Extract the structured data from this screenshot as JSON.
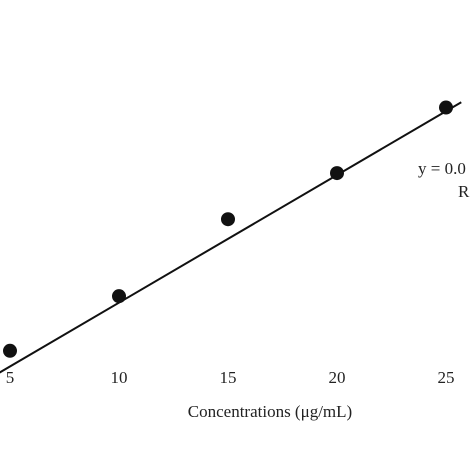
{
  "chart_data": {
    "type": "scatter",
    "xlabel": "Concentrations (μg/mL)",
    "ylabel": "",
    "title": "",
    "x_ticks": [
      "5",
      "10",
      "15",
      "20",
      "25"
    ],
    "series": [
      {
        "points": [
          {
            "x": 5,
            "y": 0.16
          },
          {
            "x": 10,
            "y": 0.27
          },
          {
            "x": 15,
            "y": 0.425
          },
          {
            "x": 20,
            "y": 0.518
          },
          {
            "x": 25,
            "y": 0.65
          }
        ],
        "marker_color": "#111111"
      }
    ],
    "trendline": {
      "type": "linear",
      "x_start": 4.5,
      "x_end": 25.7,
      "y_start": 0.1155,
      "y_end": 0.6606,
      "color": "#111111"
    },
    "annotations": {
      "equation": "y = 0.0",
      "r_squared": "R"
    },
    "grid": false
  }
}
